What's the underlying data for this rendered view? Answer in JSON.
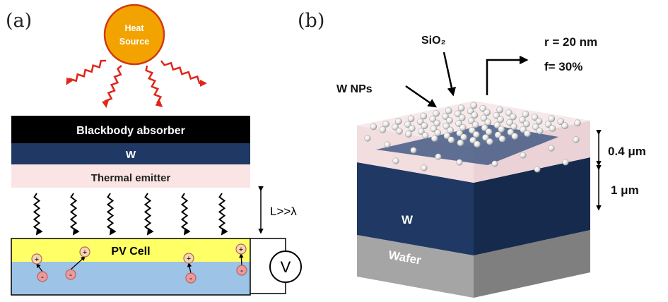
{
  "panel_a": {
    "label": "(a)",
    "heat_source": {
      "line1": "Heat",
      "line2": "Source"
    },
    "layers": {
      "absorber": "Blackbody absorber",
      "tungsten": "W",
      "emitter": "Thermal emitter"
    },
    "gap_label": "L>>λ",
    "pv_cell": "PV Cell",
    "meter": "V",
    "charges": {
      "positive": "+",
      "negative": "-"
    }
  },
  "panel_b": {
    "label": "(b)",
    "sio2": "SiO₂",
    "w_nps": "W NPs",
    "radius": "r = 20 nm",
    "fill": "f= 30%",
    "thickness_top": "0.4 μm",
    "thickness_w": "1 μm",
    "layer_w": "W",
    "layer_wafer": "Wafer"
  },
  "colors": {
    "heat_source": "#f3a300",
    "absorber": "#000000",
    "tungsten": "#1f3864",
    "emitter": "#fbe4e4",
    "pv_top": "#ffff66",
    "pv_bottom": "#9dc3e6",
    "wave": "#e0261b",
    "sio2_layer": "#f1d9dc",
    "wafer": "#999999"
  }
}
